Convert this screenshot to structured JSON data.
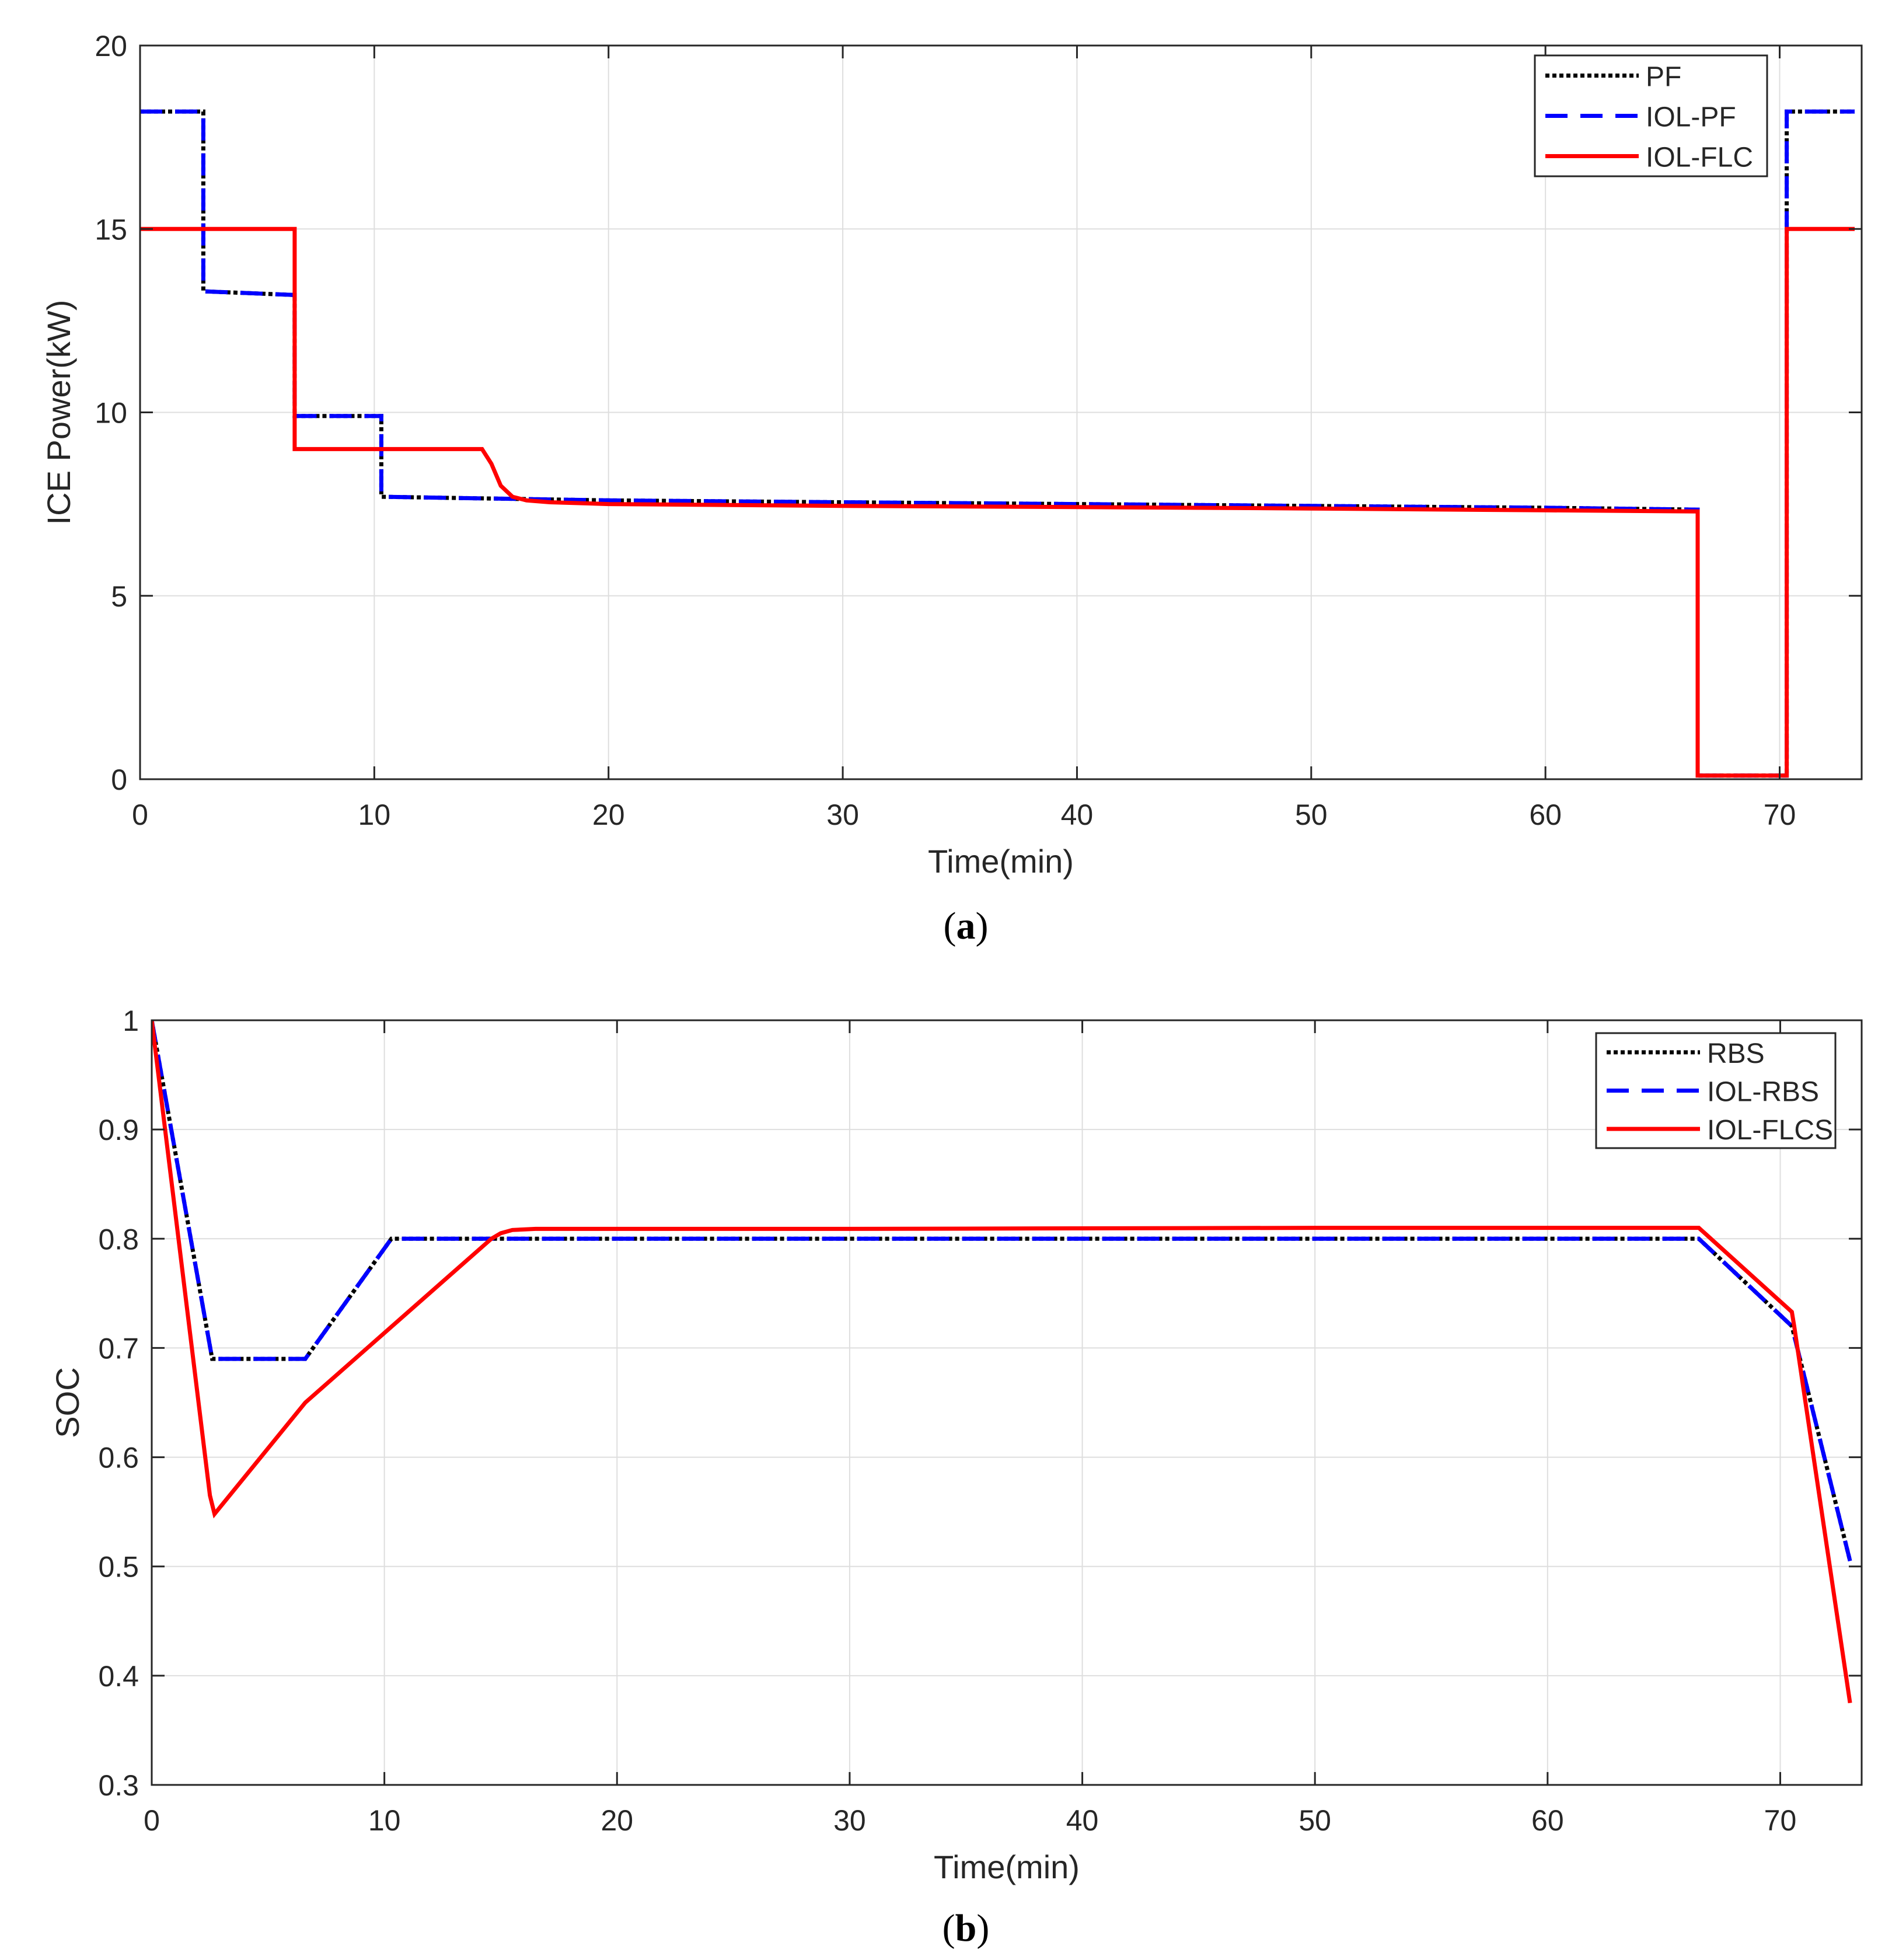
{
  "chart_data": [
    {
      "type": "line",
      "panel_label": "a",
      "xlabel": "Time(min)",
      "ylabel": "ICE Power(kW)",
      "xlim": [
        0,
        73.5
      ],
      "ylim": [
        0,
        20
      ],
      "xticks": [
        0,
        10,
        20,
        30,
        40,
        50,
        60,
        70
      ],
      "yticks": [
        0,
        5,
        10,
        15,
        20
      ],
      "grid": true,
      "legend_position": "top-right",
      "series": [
        {
          "name": "PF",
          "color": "#000000",
          "style": "dotted",
          "x": [
            0,
            2.7,
            2.7,
            6.6,
            6.6,
            10.3,
            10.3,
            20,
            30,
            40,
            50,
            60,
            66.5,
            66.5,
            70.3,
            70.3,
            73.2
          ],
          "y": [
            18.2,
            18.2,
            13.3,
            13.2,
            9.9,
            9.9,
            7.7,
            7.6,
            7.55,
            7.5,
            7.45,
            7.4,
            7.35,
            0.1,
            0.1,
            18.2,
            18.2
          ]
        },
        {
          "name": "IOL-PF",
          "color": "#0000ff",
          "style": "dashed",
          "x": [
            0,
            2.7,
            2.7,
            6.6,
            6.6,
            10.3,
            10.3,
            20,
            30,
            40,
            50,
            60,
            66.5,
            66.5,
            70.3,
            70.3,
            73.2
          ],
          "y": [
            18.2,
            18.2,
            13.3,
            13.2,
            9.9,
            9.9,
            7.7,
            7.6,
            7.55,
            7.5,
            7.45,
            7.4,
            7.35,
            0.1,
            0.1,
            18.2,
            18.2
          ]
        },
        {
          "name": "IOL-FLC",
          "color": "#ff0000",
          "style": "solid",
          "x": [
            0,
            6.6,
            6.6,
            10,
            14.6,
            15,
            15.4,
            15.9,
            16.5,
            17.5,
            20,
            30,
            40,
            50,
            60,
            66.5,
            66.5,
            70.3,
            70.3,
            73.2
          ],
          "y": [
            15,
            15,
            9,
            9,
            9,
            8.6,
            8.0,
            7.7,
            7.6,
            7.55,
            7.5,
            7.45,
            7.42,
            7.38,
            7.33,
            7.3,
            0.1,
            0.1,
            15,
            15
          ]
        }
      ]
    },
    {
      "type": "line",
      "panel_label": "b",
      "xlabel": "Time(min)",
      "ylabel": "SOC",
      "xlim": [
        0,
        73.5
      ],
      "ylim": [
        0.3,
        1
      ],
      "xticks": [
        0,
        10,
        20,
        30,
        40,
        50,
        60,
        70
      ],
      "yticks": [
        0.3,
        0.4,
        0.5,
        0.6,
        0.7,
        0.8,
        0.9,
        1
      ],
      "grid": true,
      "legend_position": "top-right",
      "series": [
        {
          "name": "RBS",
          "color": "#000000",
          "style": "dotted",
          "x": [
            0,
            2.6,
            6.6,
            10.3,
            66.5,
            70.5,
            73
          ],
          "y": [
            1,
            0.69,
            0.69,
            0.8,
            0.8,
            0.72,
            0.505
          ]
        },
        {
          "name": "IOL-RBS",
          "color": "#0000ff",
          "style": "dashed",
          "x": [
            0,
            2.6,
            6.6,
            10.3,
            66.5,
            70.5,
            73
          ],
          "y": [
            1,
            0.69,
            0.69,
            0.8,
            0.8,
            0.72,
            0.505
          ]
        },
        {
          "name": "IOL-FLCS",
          "color": "#ff0000",
          "style": "solid",
          "x": [
            0,
            2.5,
            2.7,
            6.6,
            14.6,
            15,
            15.5,
            16.5,
            30,
            50,
            66.5,
            70.5,
            70.6,
            73
          ],
          "y": [
            1,
            0.565,
            0.548,
            0.65,
            0.8,
            0.805,
            0.808,
            0.809,
            0.809,
            0.81,
            0.81,
            0.733,
            0.72,
            0.375
          ]
        }
      ]
    }
  ]
}
